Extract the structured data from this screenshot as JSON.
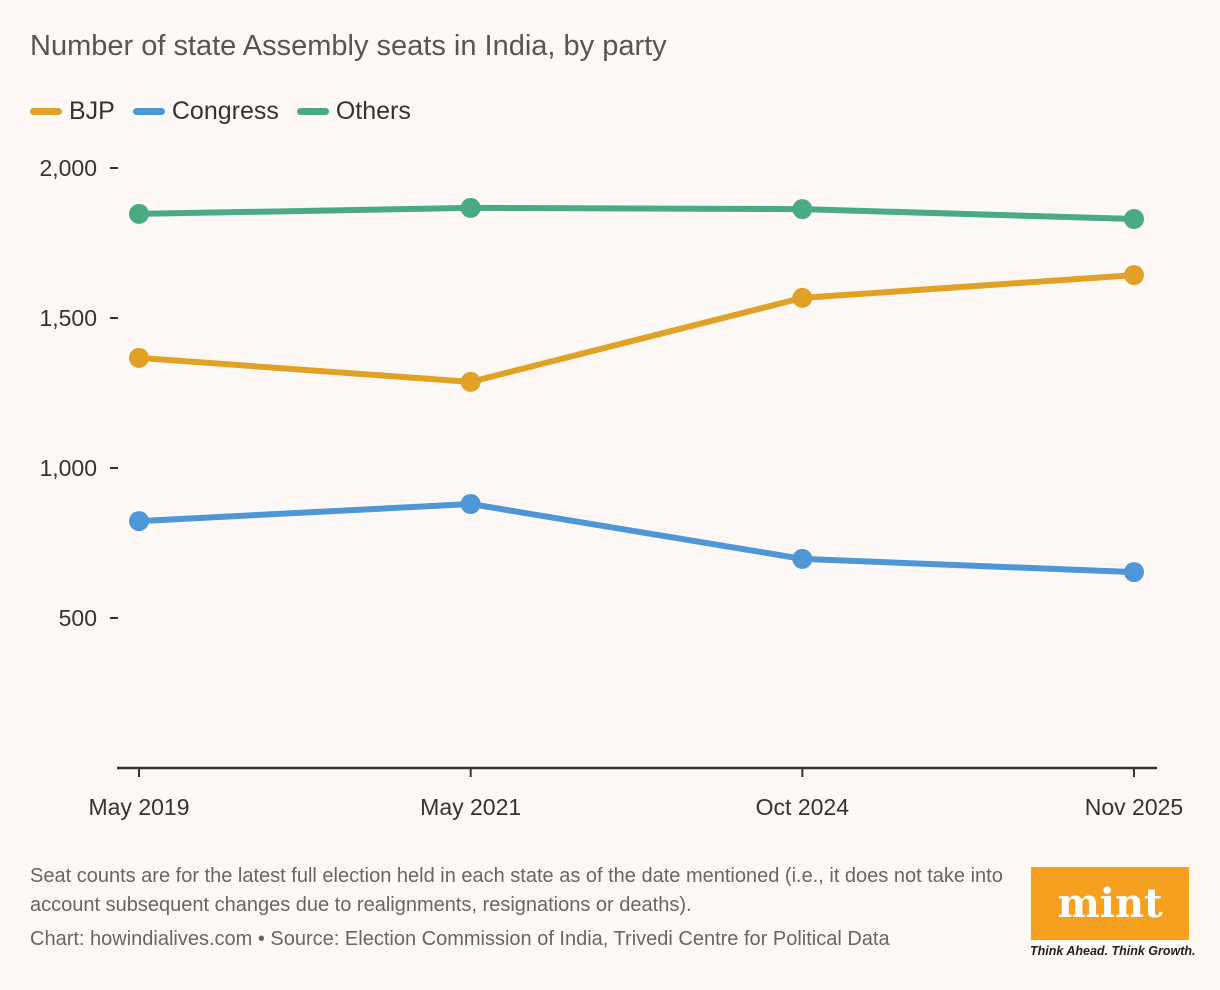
{
  "chart_data": {
    "type": "line",
    "title": "Number of state Assembly seats in India, by party",
    "categories": [
      "May 2019",
      "May 2021",
      "Oct 2024",
      "Nov 2025"
    ],
    "series": [
      {
        "name": "BJP",
        "color": "#e0a126",
        "values": [
          1367,
          1287,
          1567,
          1643
        ]
      },
      {
        "name": "Congress",
        "color": "#4d97d6",
        "values": [
          823,
          880,
          697,
          653
        ]
      },
      {
        "name": "Others",
        "color": "#4aab82",
        "values": [
          1847,
          1867,
          1863,
          1830
        ]
      }
    ],
    "yticks": [
      500,
      1000,
      1500,
      2000
    ],
    "ytick_labels": [
      "500",
      "1,000",
      "1,500",
      "2,000"
    ],
    "ylim": [
      0,
      2000
    ],
    "grid": false,
    "legend": "top-left",
    "xlabel": "",
    "ylabel": ""
  },
  "footer": {
    "note": "Seat counts are for the latest full election held in each state as of the date mentioned (i.e., it does not take into account subsequent changes due to realignments, resignations or deaths).",
    "source": "Chart: howindialives.com • Source: Election Commission of India, Trivedi Centre for Political Data"
  },
  "logo": {
    "text": "mint",
    "tagline": "Think Ahead. Think Growth.",
    "color": "#f6a01f"
  }
}
